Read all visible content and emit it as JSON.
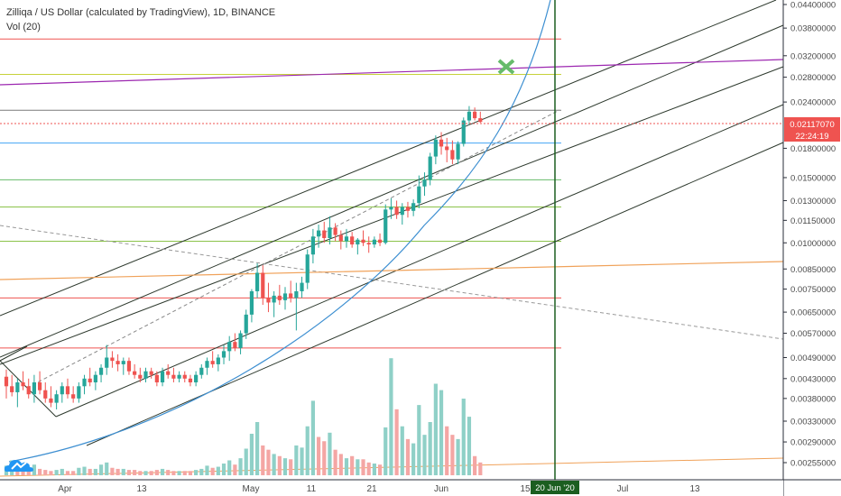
{
  "header": {
    "title": "Zilliqa / US Dollar (calculated by TradingView), 1D, BINANCE",
    "indicator": "Vol (20)"
  },
  "colors": {
    "up": "#26a69a",
    "down": "#ef5350",
    "vol_up": "#8fd0c7",
    "vol_down": "#f4a6a4",
    "price_line": "#ef5350",
    "vertical_marker": "#1b5e20",
    "curve": "#3d8fd1",
    "purple": "#9c27b0",
    "orange": "#f0a25a",
    "x_marker": "#66bb6a"
  },
  "icons": {
    "logo": "tradingview-cloud-icon",
    "target_marker": "x-cross-icon"
  },
  "chart_data": {
    "type": "candlestick",
    "scale": "log",
    "ylim": [
      0.00245,
      0.0465
    ],
    "yticks": [
      "0.04400000",
      "0.03800000",
      "0.03200000",
      "0.02800000",
      "0.02400000",
      "0.01800000",
      "0.01500000",
      "0.01300000",
      "0.01150000",
      "0.01000000",
      "0.00850000",
      "0.00750000",
      "0.00650000",
      "0.00570000",
      "0.00490000",
      "0.00430000",
      "0.00380000",
      "0.00330000",
      "0.00290000",
      "0.00255000"
    ],
    "xticks": [
      "Apr",
      "13",
      "May",
      "11",
      "21",
      "Jun",
      "15",
      "Jul",
      "13"
    ],
    "current_price": "0.02117070",
    "countdown": "22:24:19",
    "vertical_marker_label": "20 Jun '20",
    "horizontal_levels": [
      {
        "price": 0.0355,
        "color": "#ef5350"
      },
      {
        "price": 0.0285,
        "color": "#c6d23a"
      },
      {
        "price": 0.0228,
        "color": "#7a7a7a"
      },
      {
        "price": 0.0186,
        "color": "#42a5f5"
      },
      {
        "price": 0.0148,
        "color": "#66bb6a"
      },
      {
        "price": 0.0125,
        "color": "#8bc34a"
      },
      {
        "price": 0.0101,
        "color": "#8bc34a"
      },
      {
        "price": 0.0071,
        "color": "#ef5350"
      },
      {
        "price": 0.0052,
        "color": "#ef5350"
      }
    ],
    "candles": [
      {
        "o": 0.00435,
        "h": 0.00455,
        "l": 0.0038,
        "c": 0.0041
      },
      {
        "o": 0.0041,
        "h": 0.0044,
        "l": 0.00385,
        "c": 0.00395
      },
      {
        "o": 0.00395,
        "h": 0.0043,
        "l": 0.0036,
        "c": 0.0042
      },
      {
        "o": 0.0042,
        "h": 0.0045,
        "l": 0.004,
        "c": 0.0041
      },
      {
        "o": 0.0041,
        "h": 0.0043,
        "l": 0.0038,
        "c": 0.0039
      },
      {
        "o": 0.0039,
        "h": 0.0044,
        "l": 0.0037,
        "c": 0.0042
      },
      {
        "o": 0.0042,
        "h": 0.0045,
        "l": 0.0039,
        "c": 0.004
      },
      {
        "o": 0.004,
        "h": 0.0042,
        "l": 0.0037,
        "c": 0.0038
      },
      {
        "o": 0.0038,
        "h": 0.0041,
        "l": 0.0036,
        "c": 0.0037
      },
      {
        "o": 0.0037,
        "h": 0.004,
        "l": 0.00355,
        "c": 0.0039
      },
      {
        "o": 0.0039,
        "h": 0.0042,
        "l": 0.0037,
        "c": 0.0041
      },
      {
        "o": 0.0041,
        "h": 0.0043,
        "l": 0.0038,
        "c": 0.0039
      },
      {
        "o": 0.0039,
        "h": 0.0041,
        "l": 0.0037,
        "c": 0.0038
      },
      {
        "o": 0.0038,
        "h": 0.0042,
        "l": 0.0037,
        "c": 0.0041
      },
      {
        "o": 0.0041,
        "h": 0.0044,
        "l": 0.0039,
        "c": 0.0043
      },
      {
        "o": 0.0043,
        "h": 0.0046,
        "l": 0.0041,
        "c": 0.0042
      },
      {
        "o": 0.0042,
        "h": 0.0045,
        "l": 0.004,
        "c": 0.0044
      },
      {
        "o": 0.0044,
        "h": 0.0047,
        "l": 0.0042,
        "c": 0.0046
      },
      {
        "o": 0.0046,
        "h": 0.0053,
        "l": 0.0044,
        "c": 0.0049
      },
      {
        "o": 0.0049,
        "h": 0.0051,
        "l": 0.0046,
        "c": 0.0048
      },
      {
        "o": 0.0048,
        "h": 0.005,
        "l": 0.0045,
        "c": 0.0047
      },
      {
        "o": 0.0047,
        "h": 0.0049,
        "l": 0.0044,
        "c": 0.0048
      },
      {
        "o": 0.0048,
        "h": 0.0049,
        "l": 0.0044,
        "c": 0.0045
      },
      {
        "o": 0.0045,
        "h": 0.0047,
        "l": 0.0043,
        "c": 0.0044
      },
      {
        "o": 0.0044,
        "h": 0.0046,
        "l": 0.0042,
        "c": 0.0043
      },
      {
        "o": 0.0043,
        "h": 0.0046,
        "l": 0.0042,
        "c": 0.0045
      },
      {
        "o": 0.0045,
        "h": 0.0046,
        "l": 0.0043,
        "c": 0.0044
      },
      {
        "o": 0.0044,
        "h": 0.0045,
        "l": 0.0041,
        "c": 0.0042
      },
      {
        "o": 0.0042,
        "h": 0.0046,
        "l": 0.0041,
        "c": 0.0045
      },
      {
        "o": 0.0045,
        "h": 0.0047,
        "l": 0.0043,
        "c": 0.0044
      },
      {
        "o": 0.0044,
        "h": 0.0046,
        "l": 0.0042,
        "c": 0.0043
      },
      {
        "o": 0.0043,
        "h": 0.0045,
        "l": 0.0042,
        "c": 0.0044
      },
      {
        "o": 0.0044,
        "h": 0.0045,
        "l": 0.0042,
        "c": 0.0043
      },
      {
        "o": 0.0043,
        "h": 0.0044,
        "l": 0.0041,
        "c": 0.0042
      },
      {
        "o": 0.0042,
        "h": 0.0045,
        "l": 0.0041,
        "c": 0.0044
      },
      {
        "o": 0.0044,
        "h": 0.0047,
        "l": 0.0043,
        "c": 0.0046
      },
      {
        "o": 0.0046,
        "h": 0.0049,
        "l": 0.0044,
        "c": 0.0048
      },
      {
        "o": 0.0048,
        "h": 0.0051,
        "l": 0.0046,
        "c": 0.0047
      },
      {
        "o": 0.0047,
        "h": 0.005,
        "l": 0.0045,
        "c": 0.0049
      },
      {
        "o": 0.0049,
        "h": 0.0053,
        "l": 0.0047,
        "c": 0.0051
      },
      {
        "o": 0.0051,
        "h": 0.0056,
        "l": 0.0048,
        "c": 0.0054
      },
      {
        "o": 0.0054,
        "h": 0.0057,
        "l": 0.0051,
        "c": 0.0052
      },
      {
        "o": 0.0052,
        "h": 0.0058,
        "l": 0.005,
        "c": 0.0057
      },
      {
        "o": 0.0057,
        "h": 0.0066,
        "l": 0.0055,
        "c": 0.0064
      },
      {
        "o": 0.0064,
        "h": 0.0075,
        "l": 0.0061,
        "c": 0.0074
      },
      {
        "o": 0.0074,
        "h": 0.0088,
        "l": 0.0071,
        "c": 0.0083
      },
      {
        "o": 0.0083,
        "h": 0.0087,
        "l": 0.0068,
        "c": 0.0071
      },
      {
        "o": 0.0071,
        "h": 0.0078,
        "l": 0.0065,
        "c": 0.0069
      },
      {
        "o": 0.0069,
        "h": 0.0074,
        "l": 0.0063,
        "c": 0.0072
      },
      {
        "o": 0.0072,
        "h": 0.0077,
        "l": 0.0068,
        "c": 0.007
      },
      {
        "o": 0.007,
        "h": 0.0076,
        "l": 0.0066,
        "c": 0.0073
      },
      {
        "o": 0.0073,
        "h": 0.0079,
        "l": 0.0069,
        "c": 0.0071
      },
      {
        "o": 0.0071,
        "h": 0.0078,
        "l": 0.0058,
        "c": 0.0074
      },
      {
        "o": 0.0074,
        "h": 0.0081,
        "l": 0.0071,
        "c": 0.0078
      },
      {
        "o": 0.0078,
        "h": 0.0096,
        "l": 0.0075,
        "c": 0.0093
      },
      {
        "o": 0.0093,
        "h": 0.0109,
        "l": 0.0088,
        "c": 0.0104
      },
      {
        "o": 0.0104,
        "h": 0.0112,
        "l": 0.0097,
        "c": 0.0108
      },
      {
        "o": 0.0108,
        "h": 0.0114,
        "l": 0.01,
        "c": 0.0103
      },
      {
        "o": 0.0103,
        "h": 0.0118,
        "l": 0.0099,
        "c": 0.011
      },
      {
        "o": 0.011,
        "h": 0.0113,
        "l": 0.0101,
        "c": 0.0105
      },
      {
        "o": 0.0105,
        "h": 0.0108,
        "l": 0.0096,
        "c": 0.0101
      },
      {
        "o": 0.0101,
        "h": 0.0109,
        "l": 0.0097,
        "c": 0.0104
      },
      {
        "o": 0.0104,
        "h": 0.0107,
        "l": 0.0097,
        "c": 0.0099
      },
      {
        "o": 0.0099,
        "h": 0.0103,
        "l": 0.0093,
        "c": 0.0102
      },
      {
        "o": 0.0102,
        "h": 0.0108,
        "l": 0.0098,
        "c": 0.01
      },
      {
        "o": 0.01,
        "h": 0.0104,
        "l": 0.0094,
        "c": 0.0099
      },
      {
        "o": 0.0099,
        "h": 0.0104,
        "l": 0.0097,
        "c": 0.0102
      },
      {
        "o": 0.0102,
        "h": 0.0106,
        "l": 0.0098,
        "c": 0.01
      },
      {
        "o": 0.01,
        "h": 0.0127,
        "l": 0.0099,
        "c": 0.0123
      },
      {
        "o": 0.0123,
        "h": 0.0132,
        "l": 0.0116,
        "c": 0.0125
      },
      {
        "o": 0.0125,
        "h": 0.013,
        "l": 0.0116,
        "c": 0.0119
      },
      {
        "o": 0.0119,
        "h": 0.0128,
        "l": 0.0112,
        "c": 0.0125
      },
      {
        "o": 0.0125,
        "h": 0.0129,
        "l": 0.0117,
        "c": 0.0122
      },
      {
        "o": 0.0122,
        "h": 0.0131,
        "l": 0.0118,
        "c": 0.0128
      },
      {
        "o": 0.0128,
        "h": 0.0152,
        "l": 0.0124,
        "c": 0.0142
      },
      {
        "o": 0.0142,
        "h": 0.0155,
        "l": 0.0134,
        "c": 0.0148
      },
      {
        "o": 0.0148,
        "h": 0.0175,
        "l": 0.0143,
        "c": 0.0171
      },
      {
        "o": 0.0171,
        "h": 0.0195,
        "l": 0.0163,
        "c": 0.019
      },
      {
        "o": 0.019,
        "h": 0.0199,
        "l": 0.0173,
        "c": 0.0182
      },
      {
        "o": 0.0182,
        "h": 0.0192,
        "l": 0.0165,
        "c": 0.0178
      },
      {
        "o": 0.0178,
        "h": 0.0189,
        "l": 0.0163,
        "c": 0.0168
      },
      {
        "o": 0.0168,
        "h": 0.0188,
        "l": 0.0163,
        "c": 0.0185
      },
      {
        "o": 0.0185,
        "h": 0.0218,
        "l": 0.0182,
        "c": 0.0214
      },
      {
        "o": 0.0214,
        "h": 0.0234,
        "l": 0.0208,
        "c": 0.0226
      },
      {
        "o": 0.0226,
        "h": 0.0232,
        "l": 0.0214,
        "c": 0.0217
      },
      {
        "o": 0.0217,
        "h": 0.0226,
        "l": 0.0211,
        "c": 0.0212
      }
    ],
    "volumes": [
      {
        "v": 9,
        "up": true
      },
      {
        "v": 14,
        "up": true
      },
      {
        "v": 8,
        "up": false
      },
      {
        "v": 7,
        "up": false
      },
      {
        "v": 6,
        "up": false
      },
      {
        "v": 10,
        "up": true
      },
      {
        "v": 6,
        "up": false
      },
      {
        "v": 5,
        "up": false
      },
      {
        "v": 4,
        "up": false
      },
      {
        "v": 5,
        "up": true
      },
      {
        "v": 6,
        "up": true
      },
      {
        "v": 4,
        "up": false
      },
      {
        "v": 4,
        "up": false
      },
      {
        "v": 7,
        "up": true
      },
      {
        "v": 8,
        "up": true
      },
      {
        "v": 6,
        "up": false
      },
      {
        "v": 6,
        "up": true
      },
      {
        "v": 10,
        "up": true
      },
      {
        "v": 12,
        "up": true
      },
      {
        "v": 7,
        "up": false
      },
      {
        "v": 6,
        "up": false
      },
      {
        "v": 6,
        "up": true
      },
      {
        "v": 5,
        "up": false
      },
      {
        "v": 5,
        "up": false
      },
      {
        "v": 4,
        "up": false
      },
      {
        "v": 4,
        "up": true
      },
      {
        "v": 4,
        "up": false
      },
      {
        "v": 5,
        "up": false
      },
      {
        "v": 6,
        "up": true
      },
      {
        "v": 5,
        "up": false
      },
      {
        "v": 4,
        "up": false
      },
      {
        "v": 4,
        "up": true
      },
      {
        "v": 4,
        "up": false
      },
      {
        "v": 4,
        "up": false
      },
      {
        "v": 5,
        "up": true
      },
      {
        "v": 6,
        "up": true
      },
      {
        "v": 9,
        "up": true
      },
      {
        "v": 7,
        "up": false
      },
      {
        "v": 8,
        "up": true
      },
      {
        "v": 11,
        "up": true
      },
      {
        "v": 14,
        "up": true
      },
      {
        "v": 10,
        "up": false
      },
      {
        "v": 16,
        "up": true
      },
      {
        "v": 25,
        "up": true
      },
      {
        "v": 39,
        "up": true
      },
      {
        "v": 50,
        "up": true
      },
      {
        "v": 28,
        "up": false
      },
      {
        "v": 24,
        "up": false
      },
      {
        "v": 20,
        "up": true
      },
      {
        "v": 18,
        "up": false
      },
      {
        "v": 16,
        "up": true
      },
      {
        "v": 15,
        "up": false
      },
      {
        "v": 28,
        "up": true
      },
      {
        "v": 26,
        "up": true
      },
      {
        "v": 46,
        "up": true
      },
      {
        "v": 70,
        "up": true
      },
      {
        "v": 36,
        "up": false
      },
      {
        "v": 32,
        "up": false
      },
      {
        "v": 40,
        "up": true
      },
      {
        "v": 24,
        "up": false
      },
      {
        "v": 20,
        "up": false
      },
      {
        "v": 16,
        "up": true
      },
      {
        "v": 18,
        "up": false
      },
      {
        "v": 15,
        "up": true
      },
      {
        "v": 15,
        "up": false
      },
      {
        "v": 12,
        "up": false
      },
      {
        "v": 11,
        "up": true
      },
      {
        "v": 10,
        "up": false
      },
      {
        "v": 45,
        "up": true
      },
      {
        "v": 110,
        "up": true
      },
      {
        "v": 62,
        "up": false
      },
      {
        "v": 46,
        "up": true
      },
      {
        "v": 34,
        "up": false
      },
      {
        "v": 30,
        "up": true
      },
      {
        "v": 66,
        "up": true
      },
      {
        "v": 38,
        "up": true
      },
      {
        "v": 50,
        "up": true
      },
      {
        "v": 86,
        "up": true
      },
      {
        "v": 80,
        "up": true
      },
      {
        "v": 46,
        "up": false
      },
      {
        "v": 38,
        "up": false
      },
      {
        "v": 34,
        "up": true
      },
      {
        "v": 72,
        "up": true
      },
      {
        "v": 55,
        "up": true
      },
      {
        "v": 18,
        "up": false
      },
      {
        "v": 12,
        "up": false
      }
    ]
  }
}
